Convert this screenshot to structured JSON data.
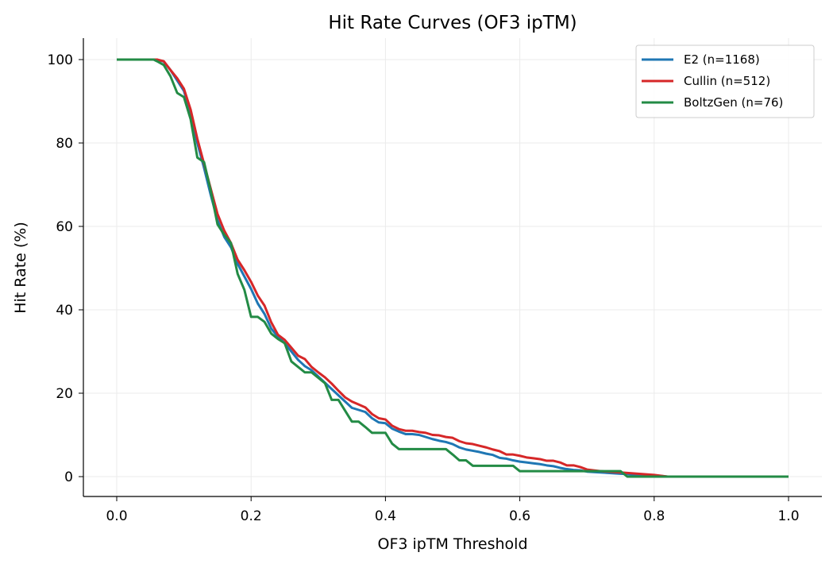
{
  "chart_data": {
    "type": "line",
    "title": "Hit Rate Curves (OF3 ipTM)",
    "xlabel": "OF3 ipTM Threshold",
    "ylabel": "Hit Rate (%)",
    "xlim": [
      -0.05,
      1.05
    ],
    "ylim": [
      -5,
      105
    ],
    "xticks": [
      0.0,
      0.2,
      0.4,
      0.6,
      0.8,
      1.0
    ],
    "xtick_labels": [
      "0.0",
      "0.2",
      "0.4",
      "0.6",
      "0.8",
      "1.0"
    ],
    "yticks": [
      0,
      20,
      40,
      60,
      80,
      100
    ],
    "ytick_labels": [
      "0",
      "20",
      "40",
      "60",
      "80",
      "100"
    ],
    "grid": true,
    "legend_position": "top-right",
    "series": [
      {
        "name": "E2 (n=1168)",
        "color": "#1f77b4",
        "points": [
          [
            0,
            100
          ],
          [
            0.06,
            100
          ],
          [
            0.07,
            99.5
          ],
          [
            0.08,
            97.5
          ],
          [
            0.09,
            95
          ],
          [
            0.1,
            92.5
          ],
          [
            0.11,
            87
          ],
          [
            0.12,
            80
          ],
          [
            0.13,
            74
          ],
          [
            0.14,
            67.5
          ],
          [
            0.15,
            61.5
          ],
          [
            0.16,
            57.5
          ],
          [
            0.17,
            55
          ],
          [
            0.18,
            51
          ],
          [
            0.19,
            48
          ],
          [
            0.2,
            45
          ],
          [
            0.21,
            41.5
          ],
          [
            0.22,
            39
          ],
          [
            0.23,
            35.5
          ],
          [
            0.24,
            33.5
          ],
          [
            0.25,
            32
          ],
          [
            0.26,
            30
          ],
          [
            0.27,
            28
          ],
          [
            0.28,
            26.5
          ],
          [
            0.29,
            25.5
          ],
          [
            0.3,
            24
          ],
          [
            0.31,
            22.5
          ],
          [
            0.32,
            21
          ],
          [
            0.33,
            19.5
          ],
          [
            0.34,
            18
          ],
          [
            0.35,
            16.5
          ],
          [
            0.36,
            16
          ],
          [
            0.37,
            15.5
          ],
          [
            0.38,
            14
          ],
          [
            0.39,
            13
          ],
          [
            0.4,
            12.8
          ],
          [
            0.41,
            11.5
          ],
          [
            0.42,
            10.8
          ],
          [
            0.43,
            10.2
          ],
          [
            0.44,
            10.2
          ],
          [
            0.45,
            10
          ],
          [
            0.46,
            9.5
          ],
          [
            0.47,
            9
          ],
          [
            0.48,
            8.6
          ],
          [
            0.49,
            8.3
          ],
          [
            0.5,
            7.8
          ],
          [
            0.51,
            7
          ],
          [
            0.52,
            6.5
          ],
          [
            0.53,
            6.2
          ],
          [
            0.54,
            5.9
          ],
          [
            0.55,
            5.5
          ],
          [
            0.56,
            5.2
          ],
          [
            0.57,
            4.5
          ],
          [
            0.58,
            4.3
          ],
          [
            0.59,
            3.9
          ],
          [
            0.6,
            3.6
          ],
          [
            0.61,
            3.4
          ],
          [
            0.62,
            3.2
          ],
          [
            0.63,
            3
          ],
          [
            0.64,
            2.7
          ],
          [
            0.65,
            2.5
          ],
          [
            0.66,
            2.1
          ],
          [
            0.67,
            1.8
          ],
          [
            0.68,
            1.6
          ],
          [
            0.69,
            1.5
          ],
          [
            0.7,
            1.2
          ],
          [
            0.72,
            1
          ],
          [
            0.75,
            0.7
          ],
          [
            0.8,
            0.3
          ],
          [
            0.82,
            0
          ],
          [
            1.0,
            0
          ]
        ]
      },
      {
        "name": "Cullin (n=512)",
        "color": "#d62728",
        "points": [
          [
            0,
            100
          ],
          [
            0.06,
            100
          ],
          [
            0.07,
            99.6
          ],
          [
            0.08,
            97.5
          ],
          [
            0.09,
            95.5
          ],
          [
            0.1,
            93
          ],
          [
            0.11,
            88
          ],
          [
            0.12,
            81
          ],
          [
            0.13,
            75
          ],
          [
            0.14,
            69
          ],
          [
            0.15,
            63
          ],
          [
            0.16,
            59
          ],
          [
            0.17,
            56
          ],
          [
            0.18,
            52
          ],
          [
            0.19,
            49.5
          ],
          [
            0.2,
            46.7
          ],
          [
            0.21,
            43.4
          ],
          [
            0.22,
            41
          ],
          [
            0.23,
            37
          ],
          [
            0.24,
            34
          ],
          [
            0.25,
            32.8
          ],
          [
            0.26,
            30.9
          ],
          [
            0.27,
            29
          ],
          [
            0.28,
            28.2
          ],
          [
            0.29,
            26.3
          ],
          [
            0.3,
            25
          ],
          [
            0.31,
            23.8
          ],
          [
            0.32,
            22.3
          ],
          [
            0.33,
            20.6
          ],
          [
            0.34,
            19
          ],
          [
            0.35,
            18
          ],
          [
            0.36,
            17.3
          ],
          [
            0.37,
            16.6
          ],
          [
            0.38,
            15
          ],
          [
            0.39,
            14
          ],
          [
            0.4,
            13.7
          ],
          [
            0.41,
            12.2
          ],
          [
            0.42,
            11.4
          ],
          [
            0.43,
            11
          ],
          [
            0.44,
            11
          ],
          [
            0.45,
            10.7
          ],
          [
            0.46,
            10.5
          ],
          [
            0.47,
            10
          ],
          [
            0.48,
            9.9
          ],
          [
            0.49,
            9.5
          ],
          [
            0.5,
            9.3
          ],
          [
            0.51,
            8.5
          ],
          [
            0.52,
            8
          ],
          [
            0.53,
            7.8
          ],
          [
            0.54,
            7.4
          ],
          [
            0.55,
            7
          ],
          [
            0.56,
            6.5
          ],
          [
            0.57,
            6.1
          ],
          [
            0.58,
            5.3
          ],
          [
            0.59,
            5.3
          ],
          [
            0.6,
            5
          ],
          [
            0.61,
            4.6
          ],
          [
            0.62,
            4.4
          ],
          [
            0.63,
            4.2
          ],
          [
            0.64,
            3.8
          ],
          [
            0.65,
            3.8
          ],
          [
            0.66,
            3.4
          ],
          [
            0.67,
            2.7
          ],
          [
            0.68,
            2.7
          ],
          [
            0.69,
            2.3
          ],
          [
            0.7,
            1.7
          ],
          [
            0.72,
            1.3
          ],
          [
            0.75,
            1
          ],
          [
            0.8,
            0.4
          ],
          [
            0.82,
            0
          ],
          [
            1.0,
            0
          ]
        ]
      },
      {
        "name": "BoltzGen (n=76)",
        "color": "#238b45",
        "points": [
          [
            0,
            100
          ],
          [
            0.055,
            100
          ],
          [
            0.06,
            99.6
          ],
          [
            0.07,
            98.7
          ],
          [
            0.08,
            96
          ],
          [
            0.09,
            92
          ],
          [
            0.1,
            91
          ],
          [
            0.11,
            85.7
          ],
          [
            0.12,
            76.5
          ],
          [
            0.13,
            75.4
          ],
          [
            0.14,
            68.5
          ],
          [
            0.15,
            60.5
          ],
          [
            0.16,
            58
          ],
          [
            0.17,
            56
          ],
          [
            0.18,
            48.6
          ],
          [
            0.19,
            44.8
          ],
          [
            0.2,
            38.3
          ],
          [
            0.21,
            38.3
          ],
          [
            0.22,
            37.1
          ],
          [
            0.23,
            34.3
          ],
          [
            0.24,
            33
          ],
          [
            0.25,
            32
          ],
          [
            0.26,
            27.6
          ],
          [
            0.27,
            26.3
          ],
          [
            0.28,
            25
          ],
          [
            0.29,
            25
          ],
          [
            0.3,
            23.7
          ],
          [
            0.31,
            22.4
          ],
          [
            0.32,
            18.4
          ],
          [
            0.33,
            18.4
          ],
          [
            0.34,
            15.8
          ],
          [
            0.35,
            13.2
          ],
          [
            0.36,
            13.2
          ],
          [
            0.37,
            11.9
          ],
          [
            0.38,
            10.5
          ],
          [
            0.4,
            10.5
          ],
          [
            0.41,
            7.9
          ],
          [
            0.42,
            6.6
          ],
          [
            0.49,
            6.6
          ],
          [
            0.5,
            5.3
          ],
          [
            0.51,
            3.9
          ],
          [
            0.52,
            3.9
          ],
          [
            0.53,
            2.6
          ],
          [
            0.59,
            2.6
          ],
          [
            0.6,
            1.3
          ],
          [
            0.75,
            1.3
          ],
          [
            0.76,
            0
          ],
          [
            1.0,
            0
          ]
        ]
      }
    ]
  }
}
